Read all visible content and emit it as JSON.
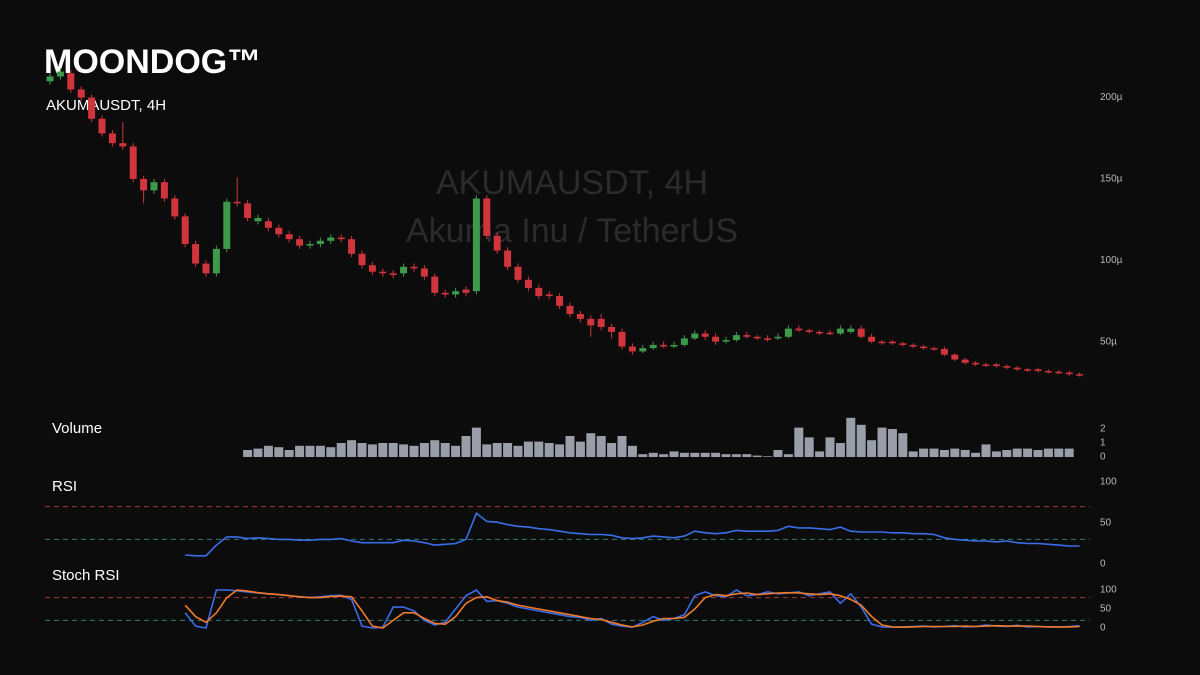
{
  "logo": "MOONDOG™",
  "chart_data": [
    {
      "type": "candlestick",
      "title": "AKUMAUSDT, 4H",
      "watermark": [
        "AKUMAUSDT, 4H",
        "Akuma Inu / TetherUS"
      ],
      "up_color": "#3d9a4a",
      "down_color": "#d0343c",
      "ylim": [
        0,
        260
      ],
      "yticks": [
        {
          "value": 50,
          "label": "50µ"
        },
        {
          "value": 100,
          "label": "100µ"
        },
        {
          "value": 150,
          "label": "150µ"
        },
        {
          "value": 200,
          "label": "200µ"
        }
      ],
      "opens": [
        210,
        213,
        215,
        205,
        200,
        187,
        178,
        172,
        170,
        150,
        143,
        148,
        138,
        127,
        110,
        98,
        92,
        107,
        136,
        135,
        124,
        124,
        120,
        116,
        113,
        109,
        110,
        112,
        114,
        113,
        104,
        97,
        93,
        92,
        92,
        96,
        95,
        90,
        80,
        79,
        82,
        81,
        138,
        115,
        106,
        96,
        88,
        83,
        79,
        78,
        72,
        67,
        64,
        64,
        59,
        56,
        47,
        44,
        46,
        48,
        47,
        48,
        52,
        55,
        53,
        50,
        51,
        54,
        53,
        52,
        52,
        53,
        58,
        57,
        56,
        55.5,
        55,
        56,
        58,
        53,
        50,
        50,
        49,
        48,
        47,
        46,
        45.5,
        42,
        39,
        37,
        36,
        36,
        35,
        34,
        33,
        33,
        32,
        31.5,
        31,
        30
      ],
      "highs": [
        215,
        218,
        217,
        207,
        202,
        189,
        180,
        185,
        172,
        152,
        150,
        150,
        140,
        129,
        112,
        100,
        109,
        138,
        151,
        137,
        128,
        126,
        122,
        118,
        115,
        112,
        114,
        116,
        116,
        115,
        106,
        99,
        95,
        94,
        98,
        98,
        97,
        92,
        82,
        83,
        84,
        140,
        140,
        117,
        108,
        98,
        90,
        85,
        81,
        80,
        74,
        69,
        66,
        67,
        61,
        58,
        49,
        48,
        50,
        50,
        50,
        54,
        57,
        57,
        55,
        53,
        56,
        56,
        54,
        54,
        55,
        60,
        60,
        58,
        57,
        57,
        60,
        60,
        60,
        55,
        51,
        51,
        50,
        49,
        48,
        47,
        47,
        43,
        40,
        38,
        37,
        37,
        36,
        35,
        34,
        34,
        33,
        32.5,
        32,
        31
      ],
      "lows": [
        208,
        211,
        203,
        198,
        185,
        176,
        170,
        168,
        148,
        135,
        141,
        136,
        125,
        108,
        96,
        90,
        90,
        105,
        133,
        124,
        122,
        118,
        114,
        111,
        107,
        107,
        108,
        110,
        111,
        102,
        95,
        91,
        90,
        89,
        90,
        93,
        88,
        78,
        77,
        77,
        78,
        79,
        113,
        104,
        94,
        86,
        81,
        76,
        76,
        70,
        65,
        62,
        53,
        57,
        52,
        45,
        42,
        43,
        45,
        46,
        46,
        47,
        51,
        51,
        48,
        49,
        50,
        52,
        51,
        50,
        51,
        52,
        56,
        55,
        54,
        54,
        54,
        55,
        52,
        49,
        48,
        48,
        47,
        46,
        45,
        44.5,
        41,
        38,
        36,
        35,
        34.5,
        34,
        33,
        32,
        31.5,
        31,
        30.5,
        30,
        29,
        28.5
      ],
      "closes": [
        213,
        216,
        205,
        200,
        187,
        178,
        172,
        170,
        150,
        143,
        148,
        138,
        127,
        110,
        98,
        92,
        107,
        136,
        135,
        126,
        126,
        120,
        116,
        113,
        109,
        110,
        112,
        114,
        113,
        104,
        97,
        93,
        92,
        91,
        96,
        95,
        90,
        80,
        79,
        81,
        80,
        138,
        115,
        106,
        96,
        88,
        83,
        78,
        78,
        72,
        67,
        64,
        60,
        59,
        56,
        47,
        44,
        46,
        48,
        47,
        48,
        52,
        55,
        53,
        50,
        51,
        54,
        53,
        52,
        51,
        53,
        58,
        57,
        56,
        55,
        55,
        58,
        58,
        53,
        50,
        49.5,
        49,
        48,
        47,
        46,
        45.5,
        42,
        39,
        37,
        36,
        35.5,
        35,
        34,
        33,
        32.5,
        32,
        31.5,
        31,
        30,
        29.5
      ]
    },
    {
      "type": "bar",
      "title": "Volume",
      "color": "#9a9ea8",
      "ylim": [
        0,
        3
      ],
      "yticks": [
        0,
        1,
        2
      ],
      "values": [
        null,
        null,
        null,
        null,
        null,
        null,
        null,
        null,
        null,
        null,
        null,
        null,
        null,
        null,
        null,
        null,
        null,
        null,
        null,
        0.5,
        0.6,
        0.8,
        0.7,
        0.5,
        0.8,
        0.8,
        0.8,
        0.7,
        1.0,
        1.2,
        1.0,
        0.9,
        1.0,
        1.0,
        0.9,
        0.8,
        1.0,
        1.2,
        1.0,
        0.8,
        1.5,
        2.1,
        0.9,
        1.0,
        1.0,
        0.8,
        1.1,
        1.1,
        1.0,
        0.9,
        1.5,
        1.1,
        1.7,
        1.5,
        1.0,
        1.5,
        0.8,
        0.2,
        0.3,
        0.2,
        0.4,
        0.3,
        0.3,
        0.3,
        0.3,
        0.2,
        0.2,
        0.2,
        0.1,
        0.05,
        0.5,
        0.2,
        2.1,
        1.4,
        0.4,
        1.4,
        1.0,
        2.8,
        2.3,
        1.2,
        2.1,
        2.0,
        1.7,
        0.4,
        0.6,
        0.6,
        0.5,
        0.6,
        0.5,
        0.3,
        0.9,
        0.4,
        0.5,
        0.6,
        0.6,
        0.5,
        0.6,
        0.6,
        0.6,
        null
      ]
    },
    {
      "type": "line",
      "title": "RSI",
      "ylim": [
        0,
        100
      ],
      "yticks": [
        0,
        50,
        100
      ],
      "hlines": [
        {
          "value": 70,
          "color": "#9b3b33"
        },
        {
          "value": 30,
          "color": "#2f7f78"
        }
      ],
      "series": [
        {
          "color": "#3a6ee8",
          "values": [
            null,
            null,
            null,
            null,
            null,
            null,
            null,
            null,
            null,
            null,
            null,
            null,
            null,
            11,
            10,
            10,
            23,
            33,
            33,
            31,
            32,
            31,
            30,
            30,
            29,
            29,
            30,
            30,
            31,
            28,
            26,
            26,
            26,
            26,
            29,
            28,
            26,
            23,
            24,
            25,
            30,
            62,
            52,
            51,
            48,
            46,
            45,
            43,
            42,
            40,
            38,
            37,
            36,
            36,
            35,
            32,
            31,
            32,
            34,
            33,
            32,
            34,
            40,
            38,
            37,
            38,
            41,
            40,
            40,
            40,
            41,
            46,
            44,
            44,
            43,
            42,
            45,
            40,
            39,
            39,
            39,
            38,
            38,
            37,
            37,
            36,
            32,
            30,
            29,
            28,
            28,
            27,
            28,
            26,
            25,
            25,
            24,
            23,
            22,
            22
          ]
        }
      ]
    },
    {
      "type": "line",
      "title": "Stoch RSI",
      "ylim": [
        0,
        100
      ],
      "yticks": [
        0,
        50,
        100
      ],
      "hlines": [
        {
          "value": 80,
          "color": "#9b3b33"
        },
        {
          "value": 20,
          "color": "#2f7f78"
        }
      ],
      "series": [
        {
          "color": "#3a6ee8",
          "values": [
            null,
            null,
            null,
            null,
            null,
            null,
            null,
            null,
            null,
            null,
            null,
            null,
            null,
            40,
            5,
            0,
            100,
            100,
            98,
            95,
            92,
            90,
            88,
            85,
            82,
            80,
            82,
            85,
            86,
            75,
            5,
            0,
            2,
            55,
            55,
            45,
            20,
            8,
            15,
            50,
            85,
            100,
            70,
            72,
            65,
            55,
            50,
            45,
            40,
            35,
            30,
            28,
            20,
            25,
            10,
            5,
            2,
            15,
            30,
            20,
            25,
            35,
            85,
            95,
            85,
            82,
            100,
            85,
            88,
            95,
            90,
            92,
            95,
            85,
            90,
            95,
            65,
            90,
            55,
            10,
            3,
            2,
            3,
            4,
            5,
            3,
            4,
            6,
            3,
            4,
            8,
            5,
            4,
            7,
            3,
            4,
            3,
            3,
            4,
            6
          ]
        },
        {
          "color": "#f07a2a",
          "values": [
            null,
            null,
            null,
            null,
            null,
            null,
            null,
            null,
            null,
            null,
            null,
            null,
            null,
            60,
            30,
            15,
            40,
            80,
            100,
            97,
            93,
            90,
            88,
            85,
            82,
            80,
            80,
            83,
            84,
            82,
            45,
            5,
            0,
            20,
            40,
            40,
            25,
            12,
            10,
            30,
            65,
            80,
            82,
            72,
            68,
            60,
            55,
            50,
            45,
            40,
            35,
            30,
            25,
            22,
            15,
            8,
            3,
            8,
            18,
            25,
            25,
            28,
            50,
            80,
            88,
            85,
            90,
            92,
            88,
            90,
            92,
            93,
            92,
            90,
            88,
            90,
            85,
            75,
            60,
            30,
            8,
            3,
            2,
            3,
            4,
            4,
            4,
            4,
            5,
            4,
            5,
            6,
            5,
            5,
            5,
            4,
            3,
            3,
            3,
            4
          ]
        }
      ]
    }
  ]
}
